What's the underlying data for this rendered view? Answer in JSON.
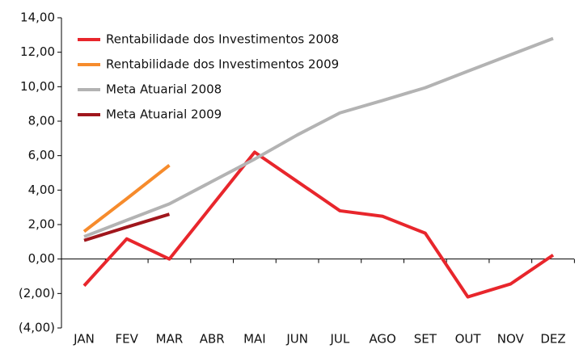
{
  "chart_data": {
    "type": "line",
    "categories": [
      "JAN",
      "FEV",
      "MAR",
      "ABR",
      "MAI",
      "JUN",
      "JUL",
      "AGO",
      "SET",
      "OUT",
      "NOV",
      "DEZ"
    ],
    "series": [
      {
        "name": "Rentabilidade dos Investimentos 2008",
        "color": "#e8262c",
        "values": [
          -1.55,
          1.17,
          0.0,
          3.1,
          6.2,
          4.5,
          2.8,
          2.48,
          1.5,
          -2.2,
          -1.45,
          0.23
        ]
      },
      {
        "name": "Rentabilidade dos Investimentos 2009",
        "color": "#f68b2c",
        "values": [
          1.6,
          3.5,
          5.44,
          null,
          null,
          null,
          null,
          null,
          null,
          null,
          null,
          null
        ]
      },
      {
        "name": "Meta Atuarial 2008",
        "color": "#b3b3b3",
        "values": [
          1.3,
          2.25,
          3.2,
          4.5,
          5.8,
          7.2,
          8.48,
          9.2,
          9.94,
          10.9,
          11.85,
          12.8
        ]
      },
      {
        "name": "Meta Atuarial 2009",
        "color": "#a0161c",
        "values": [
          1.08,
          1.85,
          2.6,
          null,
          null,
          null,
          null,
          null,
          null,
          null,
          null,
          null
        ]
      }
    ],
    "ylim": [
      -4,
      14
    ],
    "yticks": [
      {
        "value": -4,
        "label": "(4,00)"
      },
      {
        "value": -2,
        "label": "(2,00)"
      },
      {
        "value": 0,
        "label": "0,00"
      },
      {
        "value": 2,
        "label": "2,00"
      },
      {
        "value": 4,
        "label": "4,00"
      },
      {
        "value": 6,
        "label": "6,00"
      },
      {
        "value": 8,
        "label": "8,00"
      },
      {
        "value": 10,
        "label": "10,00"
      },
      {
        "value": 12,
        "label": "12,00"
      },
      {
        "value": 14,
        "label": "14,00"
      }
    ],
    "legend": "top-left"
  }
}
